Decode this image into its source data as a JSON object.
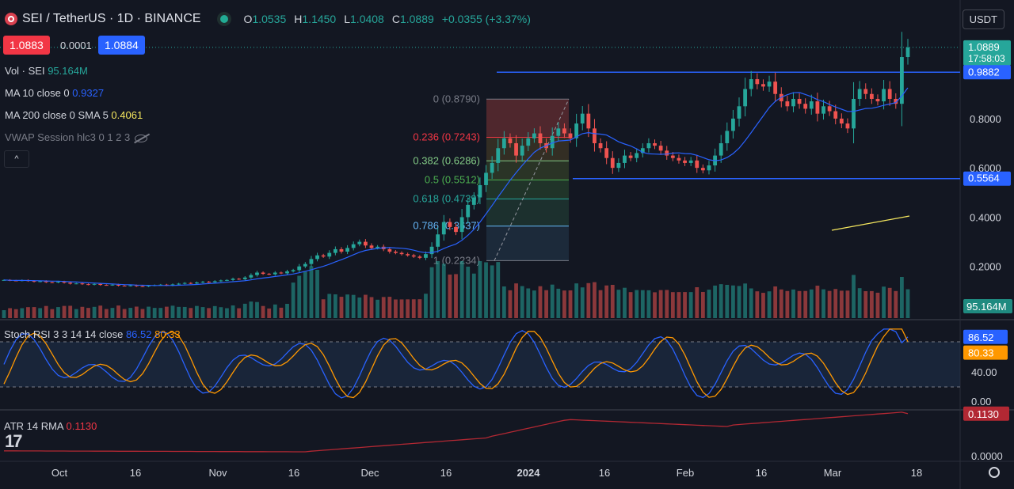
{
  "header": {
    "symbol": "SEI / TetherUS · 1D · BINANCE",
    "open_label": "O",
    "open": "1.0535",
    "high_label": "H",
    "high": "1.1450",
    "low_label": "L",
    "low": "1.0408",
    "close_label": "C",
    "close": "1.0889",
    "change": "+0.0355 (+3.37%)"
  },
  "trade": {
    "bid": "1.0883",
    "spread": "0.0001",
    "ask": "1.0884"
  },
  "currency": "USDT",
  "indicators": {
    "vol_label": "Vol · SEI",
    "vol_value": "95.164M",
    "ma10_label": "MA 10 close 0",
    "ma10_value": "0.9327",
    "ma200_label": "MA 200 close 0 SMA 5",
    "ma200_value": "0.4061",
    "vwap_label": "VWAP Session hlc3 0 1 2 3",
    "stoch_label": "Stoch RSI 3 3 14 14 close",
    "stoch_k": "86.52",
    "stoch_d": "80.33",
    "atr_label": "ATR 14 RMA",
    "atr_value": "0.1130",
    "collapse": "^"
  },
  "colors": {
    "bg": "#131722",
    "up": "#26a69a",
    "down": "#ef5350",
    "blue": "#2962ff",
    "orange": "#ff9800",
    "atr": "#b22833",
    "ma200": "#f5e75e"
  },
  "chart_data": {
    "type": "candlestick",
    "x_ticks": [
      "Oct",
      "16",
      "Nov",
      "16",
      "Dec",
      "16",
      "2024",
      "16",
      "Feb",
      "16",
      "Mar",
      "18"
    ],
    "y_ticks": [
      "0.2000",
      "0.4000",
      "0.6000",
      "0.8000"
    ],
    "price_labels": [
      {
        "text": "1.0889",
        "sub": "17:58:03",
        "value": 1.0889,
        "color": "#26a69a"
      },
      {
        "text": "0.9882",
        "value": 0.9882,
        "color": "#2962ff"
      },
      {
        "text": "0.5564",
        "value": 0.5564,
        "color": "#2962ff"
      }
    ],
    "horizontal_lines": [
      0.9882,
      0.5564
    ],
    "fib_levels": [
      {
        "label": "0 (0.8790)",
        "value": 0.879
      },
      {
        "label": "0.236 (0.7243)",
        "value": 0.7243
      },
      {
        "label": "0.382 (0.6286)",
        "value": 0.6286
      },
      {
        "label": "0.5 (0.5512)",
        "value": 0.5512
      },
      {
        "label": "0.618 (0.4739)",
        "value": 0.4739
      },
      {
        "label": "0.786 (0.3637)",
        "value": 0.3637
      },
      {
        "label": "1 (0.2234)",
        "value": 0.2234
      }
    ],
    "closes": [
      0.145,
      0.143,
      0.142,
      0.144,
      0.141,
      0.138,
      0.14,
      0.136,
      0.135,
      0.138,
      0.134,
      0.13,
      0.131,
      0.128,
      0.126,
      0.129,
      0.125,
      0.124,
      0.126,
      0.122,
      0.121,
      0.123,
      0.12,
      0.119,
      0.122,
      0.124,
      0.126,
      0.123,
      0.127,
      0.13,
      0.133,
      0.131,
      0.135,
      0.138,
      0.136,
      0.14,
      0.143,
      0.145,
      0.15,
      0.148,
      0.155,
      0.165,
      0.175,
      0.17,
      0.168,
      0.175,
      0.172,
      0.18,
      0.185,
      0.2,
      0.21,
      0.23,
      0.245,
      0.24,
      0.255,
      0.27,
      0.26,
      0.275,
      0.29,
      0.3,
      0.285,
      0.275,
      0.28,
      0.27,
      0.26,
      0.255,
      0.25,
      0.245,
      0.24,
      0.235,
      0.25,
      0.28,
      0.33,
      0.38,
      0.36,
      0.34,
      0.4,
      0.45,
      0.48,
      0.53,
      0.58,
      0.62,
      0.68,
      0.72,
      0.7,
      0.65,
      0.69,
      0.72,
      0.74,
      0.7,
      0.68,
      0.73,
      0.76,
      0.74,
      0.72,
      0.78,
      0.82,
      0.76,
      0.7,
      0.68,
      0.64,
      0.6,
      0.62,
      0.65,
      0.64,
      0.66,
      0.68,
      0.7,
      0.69,
      0.67,
      0.65,
      0.64,
      0.63,
      0.62,
      0.63,
      0.6,
      0.59,
      0.61,
      0.65,
      0.7,
      0.75,
      0.8,
      0.85,
      0.92,
      0.96,
      0.94,
      0.93,
      0.95,
      0.9,
      0.87,
      0.85,
      0.88,
      0.86,
      0.84,
      0.87,
      0.82,
      0.85,
      0.83,
      0.8,
      0.78,
      0.76,
      0.88,
      0.92,
      0.9,
      0.88,
      0.87,
      0.92,
      0.88,
      0.86,
      1.05,
      1.0889
    ],
    "stoch_rsi": {
      "k_last": 86.52,
      "d_last": 80.33,
      "y_ticks": [
        "40.00",
        "0.00"
      ],
      "bands": [
        80,
        20
      ]
    },
    "atr": {
      "last": 0.113,
      "y_ticks": [
        "0.0000"
      ]
    },
    "volume_last": "95.164M",
    "vol_ma_label": "95.164M"
  }
}
